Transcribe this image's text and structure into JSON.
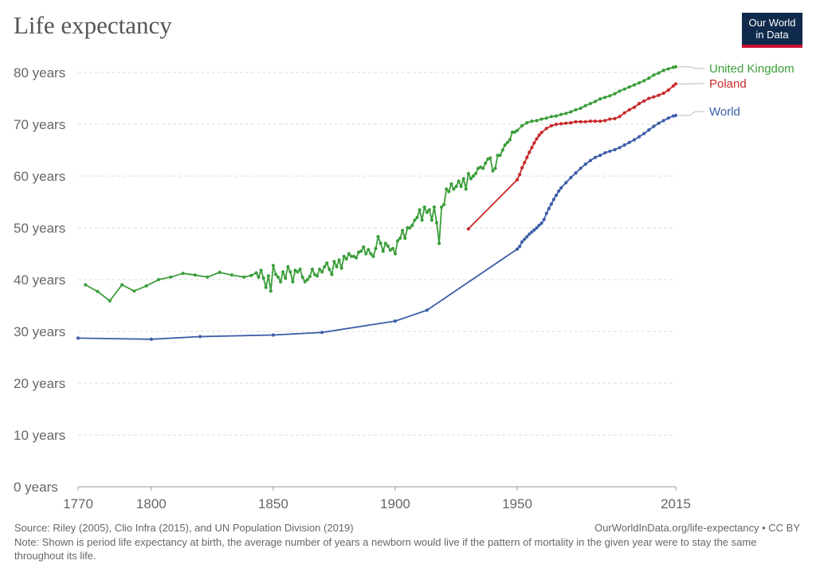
{
  "title": "Life expectancy",
  "logo": {
    "line1": "Our World",
    "line2": "in Data"
  },
  "source": "Source: Riley (2005), Clio Infra (2015), and UN Population Division (2019)",
  "credit": "OurWorldInData.org/life-expectancy • CC BY",
  "note": "Note: Shown is period life expectancy at birth, the average number of years a newborn would live if the pattern of mortality in the given year were to stay the same throughout its life.",
  "chart_data": {
    "type": "line",
    "title": "Life expectancy",
    "xlim": [
      1770,
      2015
    ],
    "ylim": [
      0,
      80
    ],
    "x_ticks": [
      1770,
      1800,
      1850,
      1900,
      1950,
      2015
    ],
    "y_ticks": [
      {
        "value": 0,
        "label": "0 years"
      },
      {
        "value": 10,
        "label": "10 years"
      },
      {
        "value": 20,
        "label": "20 years"
      },
      {
        "value": 30,
        "label": "30 years"
      },
      {
        "value": 40,
        "label": "40 years"
      },
      {
        "value": 50,
        "label": "50 years"
      },
      {
        "value": 60,
        "label": "60 years"
      },
      {
        "value": 70,
        "label": "70 years"
      },
      {
        "value": 80,
        "label": "80 years"
      }
    ],
    "grid": true,
    "legend": "end-of-line labels",
    "series": [
      {
        "name": "United Kingdom",
        "color": "#3a9e3a",
        "points": [
          [
            1773,
            39
          ],
          [
            1778,
            37.7
          ],
          [
            1783,
            35.9
          ],
          [
            1788,
            39
          ],
          [
            1793,
            37.8
          ],
          [
            1798,
            38.8
          ],
          [
            1803,
            40
          ],
          [
            1808,
            40.5
          ],
          [
            1813,
            41.2
          ],
          [
            1818,
            40.9
          ],
          [
            1823,
            40.5
          ],
          [
            1828,
            41.4
          ],
          [
            1833,
            40.9
          ],
          [
            1838,
            40.5
          ],
          [
            1841,
            40.8
          ],
          [
            1843,
            41.3
          ],
          [
            1844,
            40.5
          ],
          [
            1845,
            41.8
          ],
          [
            1846,
            40.3
          ],
          [
            1847,
            38.5
          ],
          [
            1848,
            40.7
          ],
          [
            1849,
            37.8
          ],
          [
            1850,
            42.7
          ],
          [
            1851,
            41
          ],
          [
            1852,
            40.5
          ],
          [
            1853,
            39.6
          ],
          [
            1854,
            41.5
          ],
          [
            1855,
            40.3
          ],
          [
            1856,
            42.5
          ],
          [
            1857,
            41.5
          ],
          [
            1858,
            39.6
          ],
          [
            1859,
            41.8
          ],
          [
            1860,
            41.5
          ],
          [
            1861,
            42
          ],
          [
            1862,
            40.5
          ],
          [
            1863,
            39.6
          ],
          [
            1864,
            40
          ],
          [
            1865,
            40.6
          ],
          [
            1866,
            42
          ],
          [
            1867,
            41
          ],
          [
            1868,
            40.7
          ],
          [
            1869,
            42
          ],
          [
            1870,
            41.5
          ],
          [
            1871,
            42.5
          ],
          [
            1872,
            43.2
          ],
          [
            1873,
            42
          ],
          [
            1874,
            41
          ],
          [
            1875,
            43.5
          ],
          [
            1876,
            42.5
          ],
          [
            1877,
            43.8
          ],
          [
            1878,
            42.2
          ],
          [
            1879,
            44.5
          ],
          [
            1880,
            44
          ],
          [
            1881,
            45
          ],
          [
            1882,
            44.5
          ],
          [
            1883,
            44.5
          ],
          [
            1884,
            44.2
          ],
          [
            1885,
            45.3
          ],
          [
            1886,
            45.5
          ],
          [
            1887,
            46.3
          ],
          [
            1888,
            45
          ],
          [
            1889,
            45.8
          ],
          [
            1890,
            45
          ],
          [
            1891,
            44.5
          ],
          [
            1892,
            46
          ],
          [
            1893,
            48.3
          ],
          [
            1894,
            47
          ],
          [
            1895,
            45.5
          ],
          [
            1896,
            47
          ],
          [
            1897,
            46.5
          ],
          [
            1898,
            45.7
          ],
          [
            1899,
            46
          ],
          [
            1900,
            45
          ],
          [
            1901,
            47.5
          ],
          [
            1902,
            48
          ],
          [
            1903,
            49.5
          ],
          [
            1904,
            48
          ],
          [
            1905,
            50
          ],
          [
            1906,
            50
          ],
          [
            1907,
            50.5
          ],
          [
            1908,
            51.5
          ],
          [
            1909,
            52
          ],
          [
            1910,
            53.5
          ],
          [
            1911,
            51.5
          ],
          [
            1912,
            54
          ],
          [
            1913,
            53
          ],
          [
            1914,
            53.5
          ],
          [
            1915,
            51.5
          ],
          [
            1916,
            54
          ],
          [
            1917,
            51
          ],
          [
            1918,
            47
          ],
          [
            1919,
            54
          ],
          [
            1920,
            54.5
          ],
          [
            1921,
            57.5
          ],
          [
            1922,
            57
          ],
          [
            1923,
            58.5
          ],
          [
            1924,
            57.5
          ],
          [
            1925,
            58
          ],
          [
            1926,
            59
          ],
          [
            1927,
            58
          ],
          [
            1928,
            59.5
          ],
          [
            1929,
            57.5
          ],
          [
            1930,
            60.5
          ],
          [
            1931,
            59.5
          ],
          [
            1932,
            60
          ],
          [
            1933,
            60.5
          ],
          [
            1934,
            61.5
          ],
          [
            1935,
            61.7
          ],
          [
            1936,
            61.5
          ],
          [
            1937,
            62.5
          ],
          [
            1938,
            63.3
          ],
          [
            1939,
            63.5
          ],
          [
            1940,
            61
          ],
          [
            1941,
            61.5
          ],
          [
            1942,
            64
          ],
          [
            1943,
            64
          ],
          [
            1944,
            65
          ],
          [
            1945,
            66
          ],
          [
            1946,
            66.5
          ],
          [
            1947,
            67
          ],
          [
            1948,
            68.5
          ],
          [
            1949,
            68.5
          ],
          [
            1950,
            68.8
          ],
          [
            1952,
            69.7
          ],
          [
            1954,
            70.3
          ],
          [
            1956,
            70.6
          ],
          [
            1958,
            70.7
          ],
          [
            1960,
            71
          ],
          [
            1962,
            71.2
          ],
          [
            1964,
            71.5
          ],
          [
            1966,
            71.6
          ],
          [
            1968,
            71.9
          ],
          [
            1970,
            72.1
          ],
          [
            1972,
            72.4
          ],
          [
            1974,
            72.8
          ],
          [
            1976,
            73.1
          ],
          [
            1978,
            73.6
          ],
          [
            1980,
            74
          ],
          [
            1982,
            74.4
          ],
          [
            1984,
            74.9
          ],
          [
            1986,
            75.2
          ],
          [
            1988,
            75.5
          ],
          [
            1990,
            75.9
          ],
          [
            1992,
            76.4
          ],
          [
            1994,
            76.8
          ],
          [
            1996,
            77.2
          ],
          [
            1998,
            77.6
          ],
          [
            2000,
            78
          ],
          [
            2002,
            78.4
          ],
          [
            2004,
            78.9
          ],
          [
            2006,
            79.5
          ],
          [
            2008,
            79.9
          ],
          [
            2010,
            80.4
          ],
          [
            2012,
            80.7
          ],
          [
            2014,
            81
          ],
          [
            2015,
            81.1
          ]
        ]
      },
      {
        "name": "Poland",
        "color": "#c82828",
        "points": [
          [
            1930,
            49.8
          ],
          [
            1950,
            59.3
          ],
          [
            1951,
            60.3
          ],
          [
            1952,
            61.6
          ],
          [
            1953,
            62.6
          ],
          [
            1954,
            63.6
          ],
          [
            1955,
            64.6
          ],
          [
            1956,
            65.5
          ],
          [
            1957,
            66.4
          ],
          [
            1958,
            67.2
          ],
          [
            1959,
            67.9
          ],
          [
            1960,
            68.4
          ],
          [
            1962,
            69.2
          ],
          [
            1964,
            69.7
          ],
          [
            1966,
            70
          ],
          [
            1968,
            70.1
          ],
          [
            1970,
            70.2
          ],
          [
            1972,
            70.3
          ],
          [
            1974,
            70.5
          ],
          [
            1976,
            70.5
          ],
          [
            1978,
            70.5
          ],
          [
            1980,
            70.6
          ],
          [
            1982,
            70.6
          ],
          [
            1984,
            70.6
          ],
          [
            1986,
            70.7
          ],
          [
            1988,
            71
          ],
          [
            1990,
            71.1
          ],
          [
            1992,
            71.5
          ],
          [
            1994,
            72.2
          ],
          [
            1996,
            72.8
          ],
          [
            1998,
            73.3
          ],
          [
            2000,
            74
          ],
          [
            2002,
            74.5
          ],
          [
            2004,
            75
          ],
          [
            2006,
            75.3
          ],
          [
            2008,
            75.6
          ],
          [
            2010,
            76
          ],
          [
            2012,
            76.6
          ],
          [
            2014,
            77.4
          ],
          [
            2015,
            77.8
          ]
        ]
      },
      {
        "name": "World",
        "color": "#3c5ea8",
        "points": [
          [
            1770,
            28.7
          ],
          [
            1800,
            28.5
          ],
          [
            1820,
            29
          ],
          [
            1850,
            29.3
          ],
          [
            1870,
            29.8
          ],
          [
            1900,
            32
          ],
          [
            1913,
            34.1
          ],
          [
            1950,
            45.9
          ],
          [
            1951,
            46.4
          ],
          [
            1952,
            47.3
          ],
          [
            1953,
            47.8
          ],
          [
            1954,
            48.3
          ],
          [
            1955,
            48.8
          ],
          [
            1956,
            49.2
          ],
          [
            1957,
            49.6
          ],
          [
            1958,
            50
          ],
          [
            1959,
            50.5
          ],
          [
            1960,
            50.9
          ],
          [
            1961,
            51.6
          ],
          [
            1962,
            52.8
          ],
          [
            1963,
            53.7
          ],
          [
            1964,
            54.6
          ],
          [
            1965,
            55.5
          ],
          [
            1966,
            56.3
          ],
          [
            1967,
            57.1
          ],
          [
            1968,
            57.7
          ],
          [
            1970,
            58.7
          ],
          [
            1972,
            59.7
          ],
          [
            1974,
            60.6
          ],
          [
            1976,
            61.5
          ],
          [
            1978,
            62.3
          ],
          [
            1980,
            63
          ],
          [
            1982,
            63.6
          ],
          [
            1984,
            64
          ],
          [
            1986,
            64.5
          ],
          [
            1988,
            64.8
          ],
          [
            1990,
            65.1
          ],
          [
            1992,
            65.5
          ],
          [
            1994,
            66
          ],
          [
            1996,
            66.5
          ],
          [
            1998,
            67
          ],
          [
            2000,
            67.6
          ],
          [
            2002,
            68.2
          ],
          [
            2004,
            68.9
          ],
          [
            2006,
            69.6
          ],
          [
            2008,
            70.2
          ],
          [
            2010,
            70.7
          ],
          [
            2012,
            71.2
          ],
          [
            2014,
            71.6
          ],
          [
            2015,
            71.7
          ]
        ]
      }
    ]
  }
}
